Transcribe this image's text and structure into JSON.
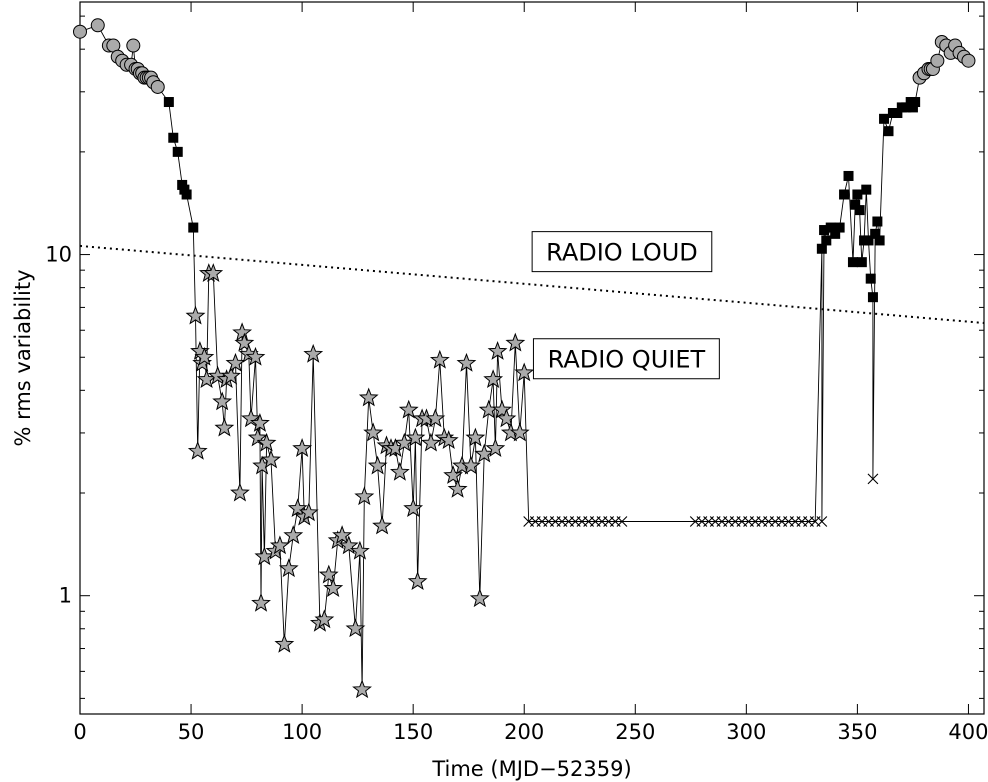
{
  "chart_data": {
    "type": "scatter",
    "title": "",
    "xlabel": "Time (MJD−52359)",
    "ylabel": "% rms variability",
    "xlim": [
      0,
      407
    ],
    "ylim": [
      0.45,
      55
    ],
    "y_scale": "log",
    "grid": false,
    "x_ticks": [
      0,
      50,
      100,
      150,
      200,
      250,
      300,
      350,
      400
    ],
    "x_tick_labels": [
      "0",
      "50",
      "100",
      "150",
      "200",
      "250",
      "300",
      "350",
      "400"
    ],
    "y_major_ticks": [
      1,
      10
    ],
    "y_major_labels": [
      "1",
      "10"
    ],
    "annotations": [
      {
        "text": "RADIO LOUD",
        "x": 244,
        "y": 10.2
      },
      {
        "text": "RADIO QUIET",
        "x": 246,
        "y": 4.95
      }
    ],
    "dividing_line": {
      "style": "dotted",
      "x": [
        0,
        407
      ],
      "y": [
        10.6,
        6.3
      ]
    },
    "series": [
      {
        "marker": "circle",
        "points": [
          [
            0,
            45
          ],
          [
            8,
            47
          ],
          [
            13,
            41
          ],
          [
            15,
            41
          ],
          [
            17,
            38
          ],
          [
            19,
            37
          ],
          [
            21,
            36
          ],
          [
            23,
            36
          ],
          [
            24,
            41
          ],
          [
            25,
            35
          ],
          [
            26,
            35
          ],
          [
            27,
            34
          ],
          [
            28,
            34
          ],
          [
            29,
            33
          ],
          [
            30,
            33
          ],
          [
            31,
            33
          ],
          [
            32,
            33
          ],
          [
            33,
            32
          ],
          [
            35,
            31
          ],
          [
            378,
            33
          ],
          [
            380,
            34
          ],
          [
            382,
            35
          ],
          [
            383,
            35
          ],
          [
            384,
            35
          ],
          [
            386,
            37
          ],
          [
            388,
            42
          ],
          [
            390,
            41
          ],
          [
            392,
            39
          ],
          [
            394,
            41
          ],
          [
            396,
            39
          ],
          [
            398,
            38
          ],
          [
            400,
            37
          ]
        ]
      },
      {
        "marker": "square",
        "points": [
          [
            40,
            28
          ],
          [
            42,
            22
          ],
          [
            44,
            20
          ],
          [
            46,
            16
          ],
          [
            47,
            15.5
          ],
          [
            48,
            15
          ],
          [
            51,
            12
          ],
          [
            334,
            10.4
          ],
          [
            335,
            11.8
          ],
          [
            336,
            11
          ],
          [
            338,
            12
          ],
          [
            340,
            11.5
          ],
          [
            342,
            12
          ],
          [
            344,
            15
          ],
          [
            346,
            17
          ],
          [
            348,
            9.5
          ],
          [
            349,
            14
          ],
          [
            350,
            15
          ],
          [
            351,
            13.5
          ],
          [
            352,
            9.5
          ],
          [
            353,
            11
          ],
          [
            354,
            15.5
          ],
          [
            355,
            11
          ],
          [
            356,
            8.5
          ],
          [
            357,
            7.5
          ],
          [
            358,
            11.5
          ],
          [
            359,
            12.5
          ],
          [
            360,
            11
          ],
          [
            362,
            25
          ],
          [
            364,
            23
          ],
          [
            366,
            26
          ],
          [
            368,
            26
          ],
          [
            370,
            27
          ],
          [
            372,
            27
          ],
          [
            374,
            28
          ],
          [
            375,
            27
          ],
          [
            376,
            28
          ]
        ]
      },
      {
        "marker": "star",
        "points": [
          [
            52,
            6.6
          ],
          [
            53,
            2.65
          ],
          [
            54,
            5.2
          ],
          [
            55,
            4.8
          ],
          [
            56,
            5.0
          ],
          [
            57,
            4.3
          ],
          [
            58,
            8.8
          ],
          [
            60,
            8.8
          ],
          [
            62,
            4.4
          ],
          [
            64,
            3.7
          ],
          [
            65,
            3.1
          ],
          [
            66,
            4.3
          ],
          [
            68,
            4.4
          ],
          [
            70,
            4.8
          ],
          [
            72,
            2.0
          ],
          [
            73,
            5.9
          ],
          [
            74,
            5.5
          ],
          [
            76,
            5.1
          ],
          [
            77,
            3.3
          ],
          [
            79,
            5.0
          ],
          [
            80,
            2.9
          ],
          [
            81,
            3.2
          ],
          [
            81.5,
            0.95
          ],
          [
            82,
            2.4
          ],
          [
            83,
            1.3
          ],
          [
            84,
            2.8
          ],
          [
            86,
            2.5
          ],
          [
            88,
            1.35
          ],
          [
            90,
            1.4
          ],
          [
            92,
            0.72
          ],
          [
            94,
            1.2
          ],
          [
            96,
            1.5
          ],
          [
            98,
            1.8
          ],
          [
            100,
            2.7
          ],
          [
            101,
            1.7
          ],
          [
            103,
            1.75
          ],
          [
            105,
            5.1
          ],
          [
            108,
            0.83
          ],
          [
            110,
            0.85
          ],
          [
            112,
            1.15
          ],
          [
            114,
            1.05
          ],
          [
            116,
            1.45
          ],
          [
            118,
            1.5
          ],
          [
            121,
            1.4
          ],
          [
            124,
            0.8
          ],
          [
            126,
            1.35
          ],
          [
            127,
            0.53
          ],
          [
            128,
            1.95
          ],
          [
            130,
            3.8
          ],
          [
            132,
            3.0
          ],
          [
            134,
            2.4
          ],
          [
            136,
            1.6
          ],
          [
            138,
            2.75
          ],
          [
            140,
            2.7
          ],
          [
            142,
            2.7
          ],
          [
            144,
            2.3
          ],
          [
            146,
            2.8
          ],
          [
            148,
            3.5
          ],
          [
            150,
            1.8
          ],
          [
            151,
            2.9
          ],
          [
            152,
            1.1
          ],
          [
            154,
            3.3
          ],
          [
            156,
            3.3
          ],
          [
            158,
            2.8
          ],
          [
            160,
            3.3
          ],
          [
            162,
            4.9
          ],
          [
            164,
            2.9
          ],
          [
            166,
            2.85
          ],
          [
            168,
            2.25
          ],
          [
            170,
            2.05
          ],
          [
            172,
            2.4
          ],
          [
            174,
            4.8
          ],
          [
            176,
            2.4
          ],
          [
            178,
            2.9
          ],
          [
            180,
            0.98
          ],
          [
            182,
            2.6
          ],
          [
            184,
            3.5
          ],
          [
            186,
            4.3
          ],
          [
            187,
            2.7
          ],
          [
            188,
            5.2
          ],
          [
            190,
            3.5
          ],
          [
            192,
            3.3
          ],
          [
            194,
            3.0
          ],
          [
            196,
            5.5
          ],
          [
            198,
            3.0
          ],
          [
            200,
            4.5
          ]
        ]
      },
      {
        "marker": "x",
        "points": [
          [
            202,
            1.65
          ],
          [
            205,
            1.65
          ],
          [
            208,
            1.65
          ],
          [
            211,
            1.65
          ],
          [
            214,
            1.65
          ],
          [
            217,
            1.65
          ],
          [
            220,
            1.65
          ],
          [
            223,
            1.65
          ],
          [
            226,
            1.65
          ],
          [
            229,
            1.65
          ],
          [
            232,
            1.65
          ],
          [
            235,
            1.65
          ],
          [
            238,
            1.65
          ],
          [
            241,
            1.65
          ],
          [
            244,
            1.65
          ],
          [
            277,
            1.65
          ],
          [
            280,
            1.65
          ],
          [
            283,
            1.65
          ],
          [
            286,
            1.65
          ],
          [
            289,
            1.65
          ],
          [
            292,
            1.65
          ],
          [
            295,
            1.65
          ],
          [
            298,
            1.65
          ],
          [
            301,
            1.65
          ],
          [
            304,
            1.65
          ],
          [
            307,
            1.65
          ],
          [
            310,
            1.65
          ],
          [
            313,
            1.65
          ],
          [
            316,
            1.65
          ],
          [
            319,
            1.65
          ],
          [
            322,
            1.65
          ],
          [
            325,
            1.65
          ],
          [
            328,
            1.65
          ],
          [
            331,
            1.65
          ],
          [
            334,
            1.65
          ],
          [
            357,
            2.2
          ]
        ]
      }
    ]
  }
}
